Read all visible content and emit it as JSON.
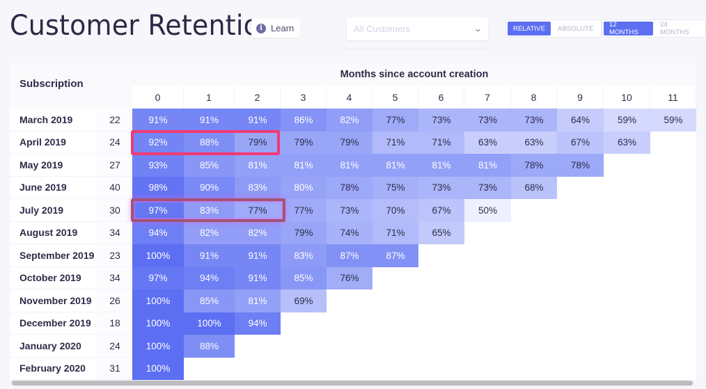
{
  "header": {
    "title": "Customer Retention",
    "learn_label": "Learn",
    "learn_icon": "info-icon",
    "segment_select": {
      "placeholder": "All Customers",
      "value": ""
    },
    "mode_toggle": [
      {
        "label": "RELATIVE",
        "active": true
      },
      {
        "label": "ABSOLUTE",
        "active": false
      }
    ],
    "range_toggle": [
      {
        "label": "12 MONTHS",
        "active": true
      },
      {
        "label": "24 MONTHS",
        "active": false
      }
    ]
  },
  "table": {
    "row_header": "Subscription",
    "column_group_header": "Months since account creation",
    "columns": [
      "0",
      "1",
      "2",
      "3",
      "4",
      "5",
      "6",
      "7",
      "8",
      "9",
      "10",
      "11"
    ],
    "rows": [
      {
        "label": "March 2019",
        "count": "22",
        "values": [
          "91%",
          "91%",
          "91%",
          "86%",
          "82%",
          "77%",
          "73%",
          "73%",
          "73%",
          "64%",
          "59%",
          "59%"
        ]
      },
      {
        "label": "April 2019",
        "count": "24",
        "values": [
          "92%",
          "88%",
          "79%",
          "79%",
          "79%",
          "71%",
          "71%",
          "63%",
          "63%",
          "67%",
          "63%"
        ]
      },
      {
        "label": "May 2019",
        "count": "27",
        "values": [
          "93%",
          "85%",
          "81%",
          "81%",
          "81%",
          "81%",
          "81%",
          "81%",
          "78%",
          "78%"
        ]
      },
      {
        "label": "June 2019",
        "count": "40",
        "values": [
          "98%",
          "90%",
          "83%",
          "80%",
          "78%",
          "75%",
          "73%",
          "73%",
          "68%"
        ]
      },
      {
        "label": "July 2019",
        "count": "30",
        "values": [
          "97%",
          "83%",
          "77%",
          "77%",
          "73%",
          "70%",
          "67%",
          "50%"
        ]
      },
      {
        "label": "August 2019",
        "count": "34",
        "values": [
          "94%",
          "82%",
          "82%",
          "79%",
          "74%",
          "71%",
          "65%"
        ]
      },
      {
        "label": "September 2019",
        "count": "23",
        "values": [
          "100%",
          "91%",
          "91%",
          "83%",
          "87%",
          "87%"
        ]
      },
      {
        "label": "October 2019",
        "count": "34",
        "values": [
          "97%",
          "94%",
          "91%",
          "85%",
          "76%"
        ]
      },
      {
        "label": "November 2019",
        "count": "26",
        "values": [
          "100%",
          "85%",
          "81%",
          "69%"
        ]
      },
      {
        "label": "December 2019",
        "count": "18",
        "values": [
          "100%",
          "100%",
          "94%"
        ]
      },
      {
        "label": "January 2020",
        "count": "24",
        "values": [
          "100%",
          "88%"
        ]
      },
      {
        "label": "February 2020",
        "count": "31",
        "values": [
          "100%"
        ]
      }
    ],
    "highlights": [
      {
        "row": "April 2019",
        "columns": [
          "0",
          "1",
          "2"
        ],
        "color": "#f23a74"
      },
      {
        "row": "July 2019",
        "columns": [
          "0",
          "1",
          "2"
        ],
        "color": "#a15472"
      }
    ]
  },
  "colors": {
    "accent": "#5c6ff2",
    "cell_max": "#5c6ff2",
    "cell_min": "#eef0ff"
  },
  "chart_data": {
    "type": "heatmap",
    "title": "Customer Retention",
    "xlabel": "Months since account creation",
    "ylabel": "Subscription",
    "x": [
      0,
      1,
      2,
      3,
      4,
      5,
      6,
      7,
      8,
      9,
      10,
      11
    ],
    "y": [
      "March 2019",
      "April 2019",
      "May 2019",
      "June 2019",
      "July 2019",
      "August 2019",
      "September 2019",
      "October 2019",
      "November 2019",
      "December 2019",
      "January 2020",
      "February 2020"
    ],
    "cohort_sizes": [
      22,
      24,
      27,
      40,
      30,
      34,
      23,
      34,
      26,
      18,
      24,
      31
    ],
    "values": [
      [
        91,
        91,
        91,
        86,
        82,
        77,
        73,
        73,
        73,
        64,
        59,
        59
      ],
      [
        92,
        88,
        79,
        79,
        79,
        71,
        71,
        63,
        63,
        67,
        63
      ],
      [
        93,
        85,
        81,
        81,
        81,
        81,
        81,
        81,
        78,
        78
      ],
      [
        98,
        90,
        83,
        80,
        78,
        75,
        73,
        73,
        68
      ],
      [
        97,
        83,
        77,
        77,
        73,
        70,
        67,
        50
      ],
      [
        94,
        82,
        82,
        79,
        74,
        71,
        65
      ],
      [
        100,
        91,
        91,
        83,
        87,
        87
      ],
      [
        97,
        94,
        91,
        85,
        76
      ],
      [
        100,
        85,
        81,
        69
      ],
      [
        100,
        100,
        94
      ],
      [
        100,
        88
      ],
      [
        100
      ]
    ],
    "unit": "%",
    "mode": "RELATIVE",
    "range": "12 MONTHS"
  }
}
